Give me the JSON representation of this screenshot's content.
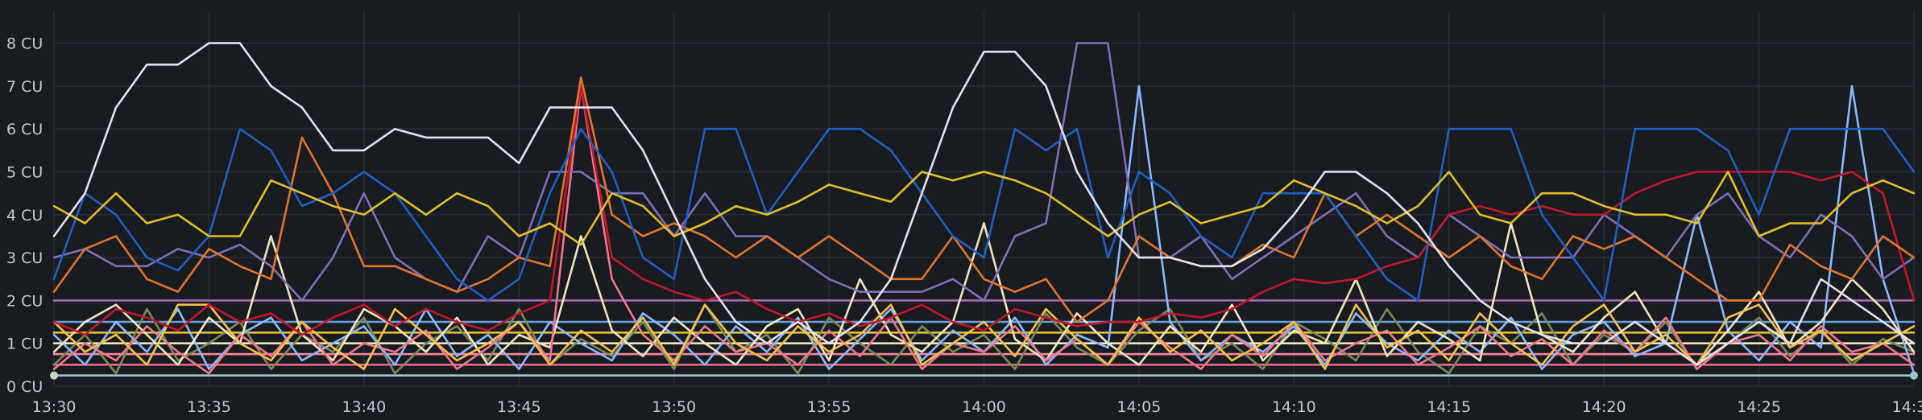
{
  "chart_data": {
    "type": "line",
    "title": "",
    "xlabel": "",
    "ylabel": "",
    "y_unit": "CU",
    "ylim": [
      0,
      8.6
    ],
    "grid": true,
    "legend": "none",
    "background": "#181b1f",
    "x_ticks": [
      "13:30",
      "13:35",
      "13:40",
      "13:45",
      "13:50",
      "13:55",
      "14:00",
      "14:05",
      "14:10",
      "14:15",
      "14:20",
      "14:25",
      "14:30"
    ],
    "y_ticks": [
      "0 CU",
      "1 CU",
      "2 CU",
      "3 CU",
      "4 CU",
      "5 CU",
      "6 CU",
      "7 CU",
      "8 CU"
    ],
    "x": [
      "13:30",
      "13:31",
      "13:32",
      "13:33",
      "13:34",
      "13:35",
      "13:36",
      "13:37",
      "13:38",
      "13:39",
      "13:40",
      "13:41",
      "13:42",
      "13:43",
      "13:44",
      "13:45",
      "13:46",
      "13:47",
      "13:48",
      "13:49",
      "13:50",
      "13:51",
      "13:52",
      "13:53",
      "13:54",
      "13:55",
      "13:56",
      "13:57",
      "13:58",
      "13:59",
      "14:00",
      "14:01",
      "14:02",
      "14:03",
      "14:04",
      "14:05",
      "14:06",
      "14:07",
      "14:08",
      "14:09",
      "14:10",
      "14:11",
      "14:12",
      "14:13",
      "14:14",
      "14:15",
      "14:16",
      "14:17",
      "14:18",
      "14:19",
      "14:20",
      "14:21",
      "14:22",
      "14:23",
      "14:24",
      "14:25",
      "14:26",
      "14:27",
      "14:28",
      "14:29",
      "14:30"
    ],
    "series": [
      {
        "color": "#7a8a5a",
        "values": [
          0.5,
          1.2,
          0.3,
          1.8,
          0.6,
          1.0,
          1.5,
          0.4,
          1.2,
          0.8,
          1.6,
          0.3,
          1.0,
          1.4,
          0.6,
          1.8,
          0.5,
          1.1,
          0.7,
          1.5,
          0.4,
          1.9,
          0.8,
          1.2,
          0.3,
          1.6,
          1.0,
          0.5,
          1.4,
          0.8,
          1.2,
          0.4,
          1.7,
          0.9,
          0.5,
          1.3,
          1.8,
          0.6,
          1.0,
          0.4,
          1.5,
          1.1,
          0.6,
          1.8,
          0.8,
          0.3,
          1.4,
          1.0,
          1.7,
          0.5,
          1.2,
          0.8,
          1.5,
          0.4,
          1.0,
          1.6,
          0.7,
          1.3,
          0.5,
          1.1,
          0.8
        ]
      },
      {
        "color": "#8ab8ff",
        "values": [
          1.2,
          0.5,
          1.5,
          0.8,
          1.8,
          0.4,
          1.2,
          1.6,
          0.6,
          1.0,
          1.4,
          0.5,
          1.8,
          0.7,
          1.2,
          0.4,
          1.5,
          1.0,
          0.6,
          1.7,
          1.2,
          0.5,
          1.4,
          0.8,
          1.6,
          0.4,
          1.1,
          1.8,
          0.6,
          1.3,
          0.8,
          1.6,
          0.5,
          1.2,
          0.9,
          7.0,
          1.5,
          0.6,
          1.2,
          0.8,
          1.4,
          0.5,
          1.7,
          1.0,
          0.6,
          1.3,
          0.8,
          1.6,
          0.4,
          1.2,
          1.5,
          0.7,
          1.0,
          4.0,
          1.3,
          0.6,
          1.5,
          0.9,
          7.0,
          2.5,
          0.3
        ]
      },
      {
        "color": "#f2e5c0",
        "values": [
          0.8,
          1.5,
          1.9,
          1.2,
          0.5,
          1.6,
          1.0,
          3.5,
          1.2,
          0.6,
          1.8,
          1.4,
          0.8,
          1.6,
          0.5,
          1.2,
          0.9,
          3.5,
          1.3,
          0.7,
          1.6,
          1.0,
          0.5,
          1.4,
          1.8,
          0.6,
          2.5,
          1.2,
          0.8,
          1.5,
          3.8,
          1.1,
          0.6,
          1.7,
          1.0,
          0.5,
          1.4,
          0.8,
          1.9,
          0.6,
          1.3,
          1.0,
          2.5,
          0.7,
          1.5,
          1.1,
          0.6,
          3.8,
          1.2,
          0.8,
          1.6,
          2.2,
          1.0,
          0.5,
          1.3,
          2.2,
          0.9,
          1.5,
          2.5,
          1.8,
          0.8
        ]
      },
      {
        "color": "#f0768c",
        "values": [
          0.4,
          1.0,
          0.6,
          1.4,
          0.8,
          0.3,
          1.2,
          0.7,
          1.5,
          0.5,
          1.0,
          0.8,
          1.3,
          0.4,
          0.9,
          1.5,
          0.6,
          7.0,
          2.5,
          1.2,
          0.6,
          1.4,
          0.8,
          1.0,
          0.5,
          1.3,
          0.7,
          1.6,
          0.4,
          1.0,
          0.8,
          1.4,
          0.6,
          1.1,
          0.5,
          1.5,
          0.9,
          0.4,
          1.2,
          0.7,
          1.5,
          0.6,
          1.0,
          1.3,
          0.5,
          0.9,
          1.4,
          0.7,
          1.1,
          0.5,
          1.3,
          0.8,
          1.6,
          0.4,
          1.0,
          1.2,
          0.6,
          1.4,
          0.8,
          1.0,
          0.5
        ]
      },
      {
        "color": "#f4c24a",
        "values": [
          1.5,
          0.8,
          1.2,
          0.5,
          1.9,
          1.9,
          1.0,
          0.6,
          1.5,
          0.9,
          0.4,
          1.8,
          1.2,
          0.6,
          1.0,
          1.5,
          0.5,
          1.3,
          0.8,
          1.6,
          0.5,
          1.9,
          1.0,
          0.6,
          1.4,
          0.8,
          1.2,
          1.9,
          0.5,
          1.0,
          1.5,
          0.7,
          1.8,
          1.1,
          0.5,
          1.6,
          0.8,
          1.3,
          0.6,
          1.0,
          1.5,
          0.4,
          1.9,
          0.9,
          1.3,
          0.6,
          1.7,
          1.0,
          0.5,
          1.4,
          1.9,
          0.8,
          1.2,
          0.5,
          1.6,
          1.9,
          0.9,
          1.3,
          0.6,
          1.0,
          1.4
        ]
      },
      {
        "color": "#806eb7",
        "values": [
          3.0,
          3.2,
          2.8,
          2.8,
          3.2,
          3.0,
          3.3,
          2.8,
          2.0,
          3.0,
          4.5,
          3.0,
          2.5,
          2.2,
          3.5,
          3.0,
          5.0,
          5.0,
          4.5,
          4.5,
          3.5,
          4.5,
          3.5,
          3.5,
          3.0,
          2.5,
          2.2,
          2.2,
          2.2,
          2.5,
          2.0,
          3.5,
          3.8,
          8.0,
          8.0,
          3.0,
          3.0,
          3.5,
          2.5,
          3.0,
          3.5,
          4.0,
          4.5,
          3.5,
          3.0,
          4.0,
          3.5,
          3.0,
          3.0,
          3.0,
          4.0,
          3.5,
          3.0,
          4.0,
          4.5,
          3.5,
          3.0,
          4.0,
          3.5,
          2.5,
          3.0
        ]
      },
      {
        "color": "#c4162a",
        "values": [
          1.5,
          1.2,
          1.8,
          1.6,
          1.3,
          1.9,
          1.5,
          1.7,
          1.2,
          1.6,
          1.9,
          1.4,
          1.8,
          1.5,
          1.3,
          1.7,
          2.0,
          7.0,
          3.0,
          2.5,
          2.2,
          2.0,
          2.2,
          1.8,
          1.5,
          1.7,
          1.4,
          1.6,
          1.9,
          1.5,
          1.3,
          1.8,
          1.6,
          1.4,
          1.5,
          1.5,
          1.7,
          1.6,
          1.8,
          2.2,
          2.5,
          2.4,
          2.5,
          2.8,
          3.0,
          4.0,
          4.2,
          4.0,
          4.2,
          4.0,
          4.0,
          4.5,
          4.8,
          5.0,
          5.0,
          5.0,
          5.0,
          4.8,
          5.0,
          4.5,
          2.0
        ]
      },
      {
        "color": "#e0752d",
        "values": [
          2.2,
          3.2,
          3.5,
          2.5,
          2.2,
          3.2,
          2.8,
          2.5,
          5.8,
          4.5,
          2.8,
          2.8,
          2.5,
          2.2,
          2.5,
          3.0,
          2.8,
          7.2,
          4.0,
          3.5,
          3.8,
          3.5,
          3.0,
          3.5,
          3.0,
          3.5,
          3.0,
          2.5,
          2.5,
          3.5,
          2.5,
          2.2,
          2.5,
          1.5,
          2.0,
          3.5,
          3.0,
          2.8,
          2.8,
          3.3,
          3.0,
          4.5,
          3.5,
          4.0,
          3.5,
          3.0,
          3.5,
          2.8,
          2.5,
          3.5,
          3.2,
          3.5,
          3.0,
          2.5,
          2.0,
          2.0,
          3.3,
          2.8,
          2.5,
          3.5,
          3.0
        ]
      },
      {
        "color": "#1f60c4",
        "values": [
          2.5,
          4.5,
          4.0,
          3.0,
          2.7,
          3.5,
          6.0,
          5.5,
          4.2,
          4.5,
          5.0,
          4.5,
          3.5,
          2.5,
          2.0,
          2.5,
          4.5,
          6.0,
          5.0,
          3.0,
          2.5,
          6.0,
          6.0,
          4.0,
          5.0,
          6.0,
          6.0,
          5.5,
          4.5,
          3.5,
          3.0,
          6.0,
          5.5,
          6.0,
          3.0,
          5.0,
          4.5,
          3.5,
          3.0,
          4.5,
          4.5,
          4.5,
          3.5,
          2.5,
          2.0,
          6.0,
          6.0,
          6.0,
          4.0,
          3.0,
          2.0,
          6.0,
          6.0,
          6.0,
          5.5,
          4.0,
          6.0,
          6.0,
          6.0,
          6.0,
          5.0
        ]
      },
      {
        "color": "#e0c028",
        "values": [
          4.2,
          3.8,
          4.5,
          3.8,
          4.0,
          3.5,
          3.5,
          4.8,
          4.5,
          4.2,
          4.0,
          4.5,
          4.0,
          4.5,
          4.2,
          3.5,
          3.8,
          3.3,
          4.5,
          4.2,
          3.5,
          3.8,
          4.2,
          4.0,
          4.3,
          4.7,
          4.5,
          4.3,
          5.0,
          4.8,
          5.0,
          4.8,
          4.5,
          4.0,
          3.5,
          4.0,
          4.3,
          3.8,
          4.0,
          4.2,
          4.8,
          4.5,
          4.2,
          3.8,
          4.2,
          5.0,
          4.0,
          3.8,
          4.5,
          4.5,
          4.2,
          4.0,
          4.0,
          3.8,
          5.0,
          3.5,
          3.8,
          3.8,
          4.5,
          4.8,
          4.5
        ]
      },
      {
        "color": "#e6e1ec",
        "values": [
          3.5,
          4.5,
          6.5,
          7.5,
          7.5,
          8.0,
          8.0,
          7.0,
          6.5,
          5.5,
          5.5,
          6.0,
          5.8,
          5.8,
          5.8,
          5.2,
          6.5,
          6.5,
          6.5,
          5.5,
          4.0,
          2.5,
          1.5,
          1.0,
          1.5,
          1.0,
          1.5,
          2.5,
          4.5,
          6.5,
          7.8,
          7.8,
          7.0,
          5.0,
          3.8,
          3.0,
          3.0,
          2.8,
          2.8,
          3.2,
          4.0,
          5.0,
          5.0,
          4.5,
          3.8,
          2.8,
          2.0,
          1.5,
          1.2,
          1.0,
          1.0,
          1.5,
          1.0,
          0.5,
          1.0,
          1.5,
          1.0,
          2.5,
          2.0,
          1.5,
          1.0
        ]
      }
    ],
    "constant_series": [
      {
        "color": "#a36ab0",
        "value": 2.0
      },
      {
        "color": "#6a9fd8",
        "value": 1.5
      },
      {
        "color": "#e8c438",
        "value": 1.25
      },
      {
        "color": "#f2e5c0",
        "value": 1.0
      },
      {
        "color": "#f08a9a",
        "value": 0.75
      },
      {
        "color": "#e26a8a",
        "value": 0.5
      },
      {
        "color": "#e0752d",
        "value": 0.25
      },
      {
        "color": "#9ec3d0",
        "value": 0.25
      }
    ]
  }
}
